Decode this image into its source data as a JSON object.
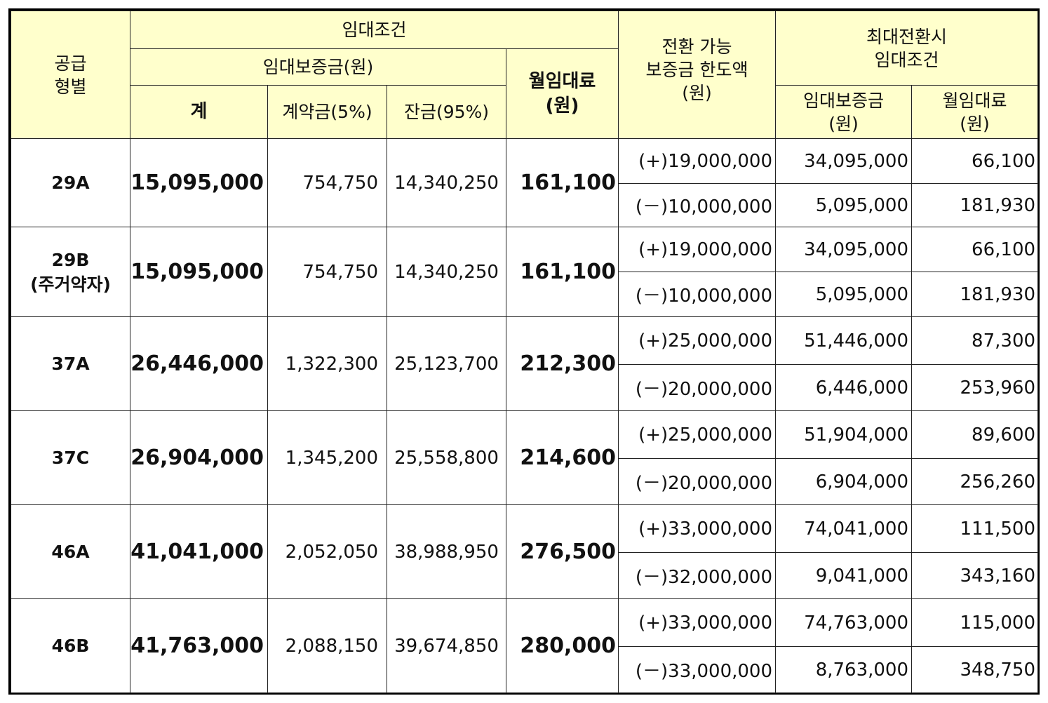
{
  "headers": {
    "supply_type_l1": "공급",
    "supply_type_l2": "형별",
    "lease_terms": "임대조건",
    "lease_deposit": "임대보증금(원)",
    "total": "계",
    "contract_deposit": "계약금(5%)",
    "balance": "잔금(95%)",
    "monthly_rent_l1": "월임대료",
    "monthly_rent_l2": "(원)",
    "convertible_l1": "전환 가능",
    "convertible_l2": "보증금 한도액",
    "convertible_l3": "(원)",
    "max_conv_l1": "최대전환시",
    "max_conv_l2": "임대조건",
    "max_deposit_l1": "임대보증금",
    "max_deposit_l2": "(원)",
    "max_rent_l1": "월임대료",
    "max_rent_l2": "(원)"
  },
  "rows": [
    {
      "type_l1": "29A",
      "type_l2": "",
      "total": "15,095,000",
      "contract": "754,750",
      "balance": "14,340,250",
      "rent": "161,100",
      "plus_limit": "(+)19,000,000",
      "plus_deposit": "34,095,000",
      "plus_rent": "66,100",
      "minus_limit": "(－)10,000,000",
      "minus_deposit": "5,095,000",
      "minus_rent": "181,930"
    },
    {
      "type_l1": "29B",
      "type_l2": "(주거약자)",
      "total": "15,095,000",
      "contract": "754,750",
      "balance": "14,340,250",
      "rent": "161,100",
      "plus_limit": "(+)19,000,000",
      "plus_deposit": "34,095,000",
      "plus_rent": "66,100",
      "minus_limit": "(－)10,000,000",
      "minus_deposit": "5,095,000",
      "minus_rent": "181,930"
    },
    {
      "type_l1": "37A",
      "type_l2": "",
      "total": "26,446,000",
      "contract": "1,322,300",
      "balance": "25,123,700",
      "rent": "212,300",
      "plus_limit": "(+)25,000,000",
      "plus_deposit": "51,446,000",
      "plus_rent": "87,300",
      "minus_limit": "(－)20,000,000",
      "minus_deposit": "6,446,000",
      "minus_rent": "253,960"
    },
    {
      "type_l1": "37C",
      "type_l2": "",
      "total": "26,904,000",
      "contract": "1,345,200",
      "balance": "25,558,800",
      "rent": "214,600",
      "plus_limit": "(+)25,000,000",
      "plus_deposit": "51,904,000",
      "plus_rent": "89,600",
      "minus_limit": "(－)20,000,000",
      "minus_deposit": "6,904,000",
      "minus_rent": "256,260"
    },
    {
      "type_l1": "46A",
      "type_l2": "",
      "total": "41,041,000",
      "contract": "2,052,050",
      "balance": "38,988,950",
      "rent": "276,500",
      "plus_limit": "(+)33,000,000",
      "plus_deposit": "74,041,000",
      "plus_rent": "111,500",
      "minus_limit": "(－)32,000,000",
      "minus_deposit": "9,041,000",
      "minus_rent": "343,160"
    },
    {
      "type_l1": "46B",
      "type_l2": "",
      "total": "41,763,000",
      "contract": "2,088,150",
      "balance": "39,674,850",
      "rent": "280,000",
      "plus_limit": "(+)33,000,000",
      "plus_deposit": "74,763,000",
      "plus_rent": "115,000",
      "minus_limit": "(－)33,000,000",
      "minus_deposit": "8,763,000",
      "minus_rent": "348,750"
    }
  ]
}
